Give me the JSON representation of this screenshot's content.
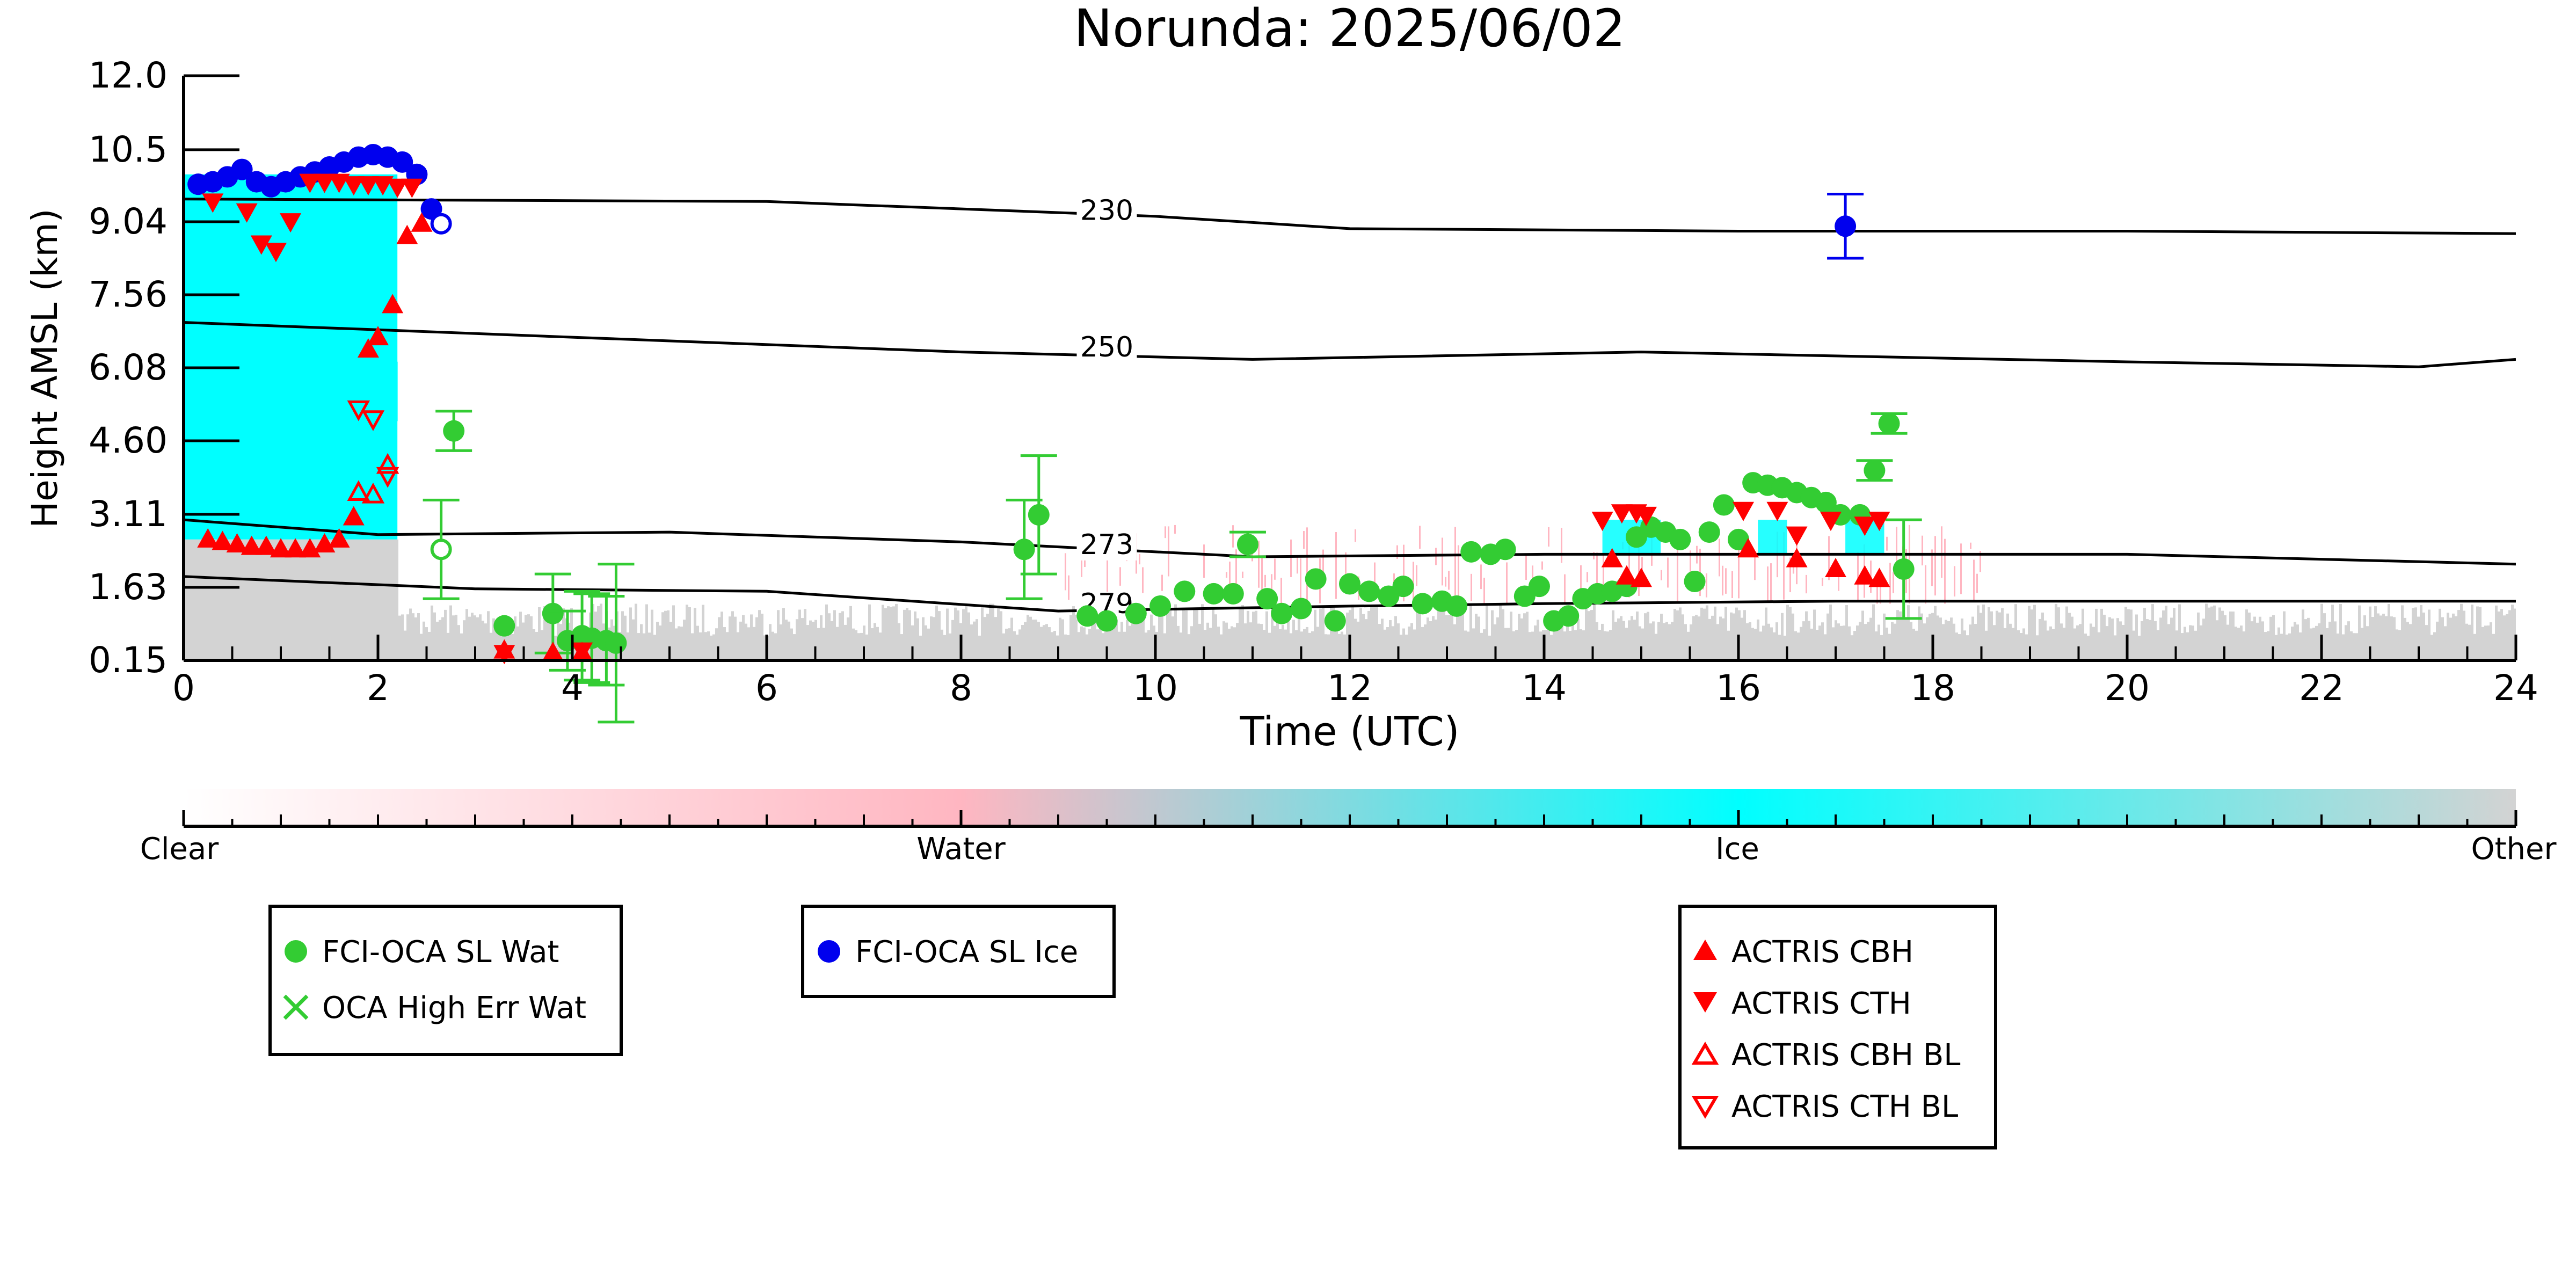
{
  "chart_data": {
    "type": "scatter",
    "title": "Norunda: 2025/06/02",
    "xlabel": "Time (UTC)",
    "ylabel": "Height AMSL (km)",
    "xlim": [
      0,
      24
    ],
    "ylim": [
      0.15,
      12.0
    ],
    "x_ticks": [
      0,
      2,
      4,
      6,
      8,
      10,
      12,
      14,
      16,
      18,
      20,
      22,
      24
    ],
    "y_ticks": [
      "0.15",
      "1.63",
      "3.11",
      "4.60",
      "6.08",
      "7.56",
      "9.04",
      "10.5",
      "12.0"
    ],
    "y_tick_values": [
      0.15,
      1.63,
      3.11,
      4.6,
      6.08,
      7.56,
      9.04,
      10.5,
      12.0
    ],
    "grid": false,
    "colorbar": {
      "labels": [
        "Clear",
        "Water",
        "Ice",
        "Other"
      ],
      "colors": [
        "#ffffff",
        "#ffb6c1",
        "#00ffff",
        "#d3d3d3"
      ]
    },
    "background_layers": [
      {
        "category": "Ice",
        "color": "#00ffff",
        "x_range": [
          0.0,
          2.2
        ],
        "y_range": [
          2.6,
          10.0
        ]
      },
      {
        "category": "Other",
        "color": "#d3d3d3",
        "x_range": [
          0.0,
          24.0
        ],
        "y_range": [
          0.15,
          1.3
        ]
      },
      {
        "category": "Water",
        "color": "#ffb6c1",
        "x_range": [
          9.0,
          18.5
        ],
        "y_range": [
          1.3,
          2.9
        ]
      }
    ],
    "isotherms": [
      {
        "label": "230",
        "label_at": [
          9.5,
          9.12
        ],
        "points": [
          [
            0,
            9.5
          ],
          [
            6,
            9.45
          ],
          [
            10,
            9.15
          ],
          [
            12,
            8.9
          ],
          [
            16,
            8.85
          ],
          [
            20,
            8.85
          ],
          [
            24,
            8.8
          ]
        ]
      },
      {
        "label": "250",
        "label_at": [
          9.5,
          6.35
        ],
        "points": [
          [
            0,
            7.0
          ],
          [
            4,
            6.7
          ],
          [
            8,
            6.4
          ],
          [
            11,
            6.25
          ],
          [
            15,
            6.4
          ],
          [
            20,
            6.2
          ],
          [
            23,
            6.1
          ],
          [
            24,
            6.25
          ]
        ]
      },
      {
        "label": "273",
        "label_at": [
          9.5,
          2.35
        ],
        "points": [
          [
            0,
            3.0
          ],
          [
            2,
            2.7
          ],
          [
            5,
            2.75
          ],
          [
            8,
            2.55
          ],
          [
            11,
            2.25
          ],
          [
            14,
            2.3
          ],
          [
            17,
            2.3
          ],
          [
            20,
            2.3
          ],
          [
            24,
            2.1
          ]
        ]
      },
      {
        "label": "279",
        "label_at": [
          9.5,
          1.15
        ],
        "points": [
          [
            0,
            1.85
          ],
          [
            3,
            1.6
          ],
          [
            6,
            1.55
          ],
          [
            9,
            1.15
          ],
          [
            12,
            1.25
          ],
          [
            14,
            1.3
          ],
          [
            17,
            1.35
          ],
          [
            24,
            1.35
          ]
        ]
      }
    ],
    "series": [
      {
        "name": "FCI-OCA SL Wat",
        "marker": "filled-circle",
        "color": "#33cc33",
        "points": [
          {
            "x": 2.78,
            "y": 4.8,
            "err": 0.4
          },
          {
            "x": 3.3,
            "y": 0.85
          },
          {
            "x": 3.8,
            "y": 1.1,
            "err": 0.8
          },
          {
            "x": 3.95,
            "y": 0.55,
            "err": 0.6
          },
          {
            "x": 4.1,
            "y": 0.65,
            "err": 0.9
          },
          {
            "x": 4.2,
            "y": 0.6,
            "err": 0.9
          },
          {
            "x": 4.35,
            "y": 0.55,
            "err": 0.9
          },
          {
            "x": 4.45,
            "y": 0.5,
            "err": 1.6
          },
          {
            "x": 8.65,
            "y": 2.4,
            "err": 1.0
          },
          {
            "x": 8.8,
            "y": 3.1,
            "err": 1.2
          },
          {
            "x": 9.3,
            "y": 1.05
          },
          {
            "x": 9.5,
            "y": 0.95
          },
          {
            "x": 9.8,
            "y": 1.1
          },
          {
            "x": 10.05,
            "y": 1.25
          },
          {
            "x": 10.3,
            "y": 1.55
          },
          {
            "x": 10.6,
            "y": 1.5
          },
          {
            "x": 10.8,
            "y": 1.5
          },
          {
            "x": 10.95,
            "y": 2.5,
            "err": 0.25
          },
          {
            "x": 11.15,
            "y": 1.4
          },
          {
            "x": 11.3,
            "y": 1.1
          },
          {
            "x": 11.5,
            "y": 1.2
          },
          {
            "x": 11.65,
            "y": 1.8
          },
          {
            "x": 11.85,
            "y": 0.95
          },
          {
            "x": 12.0,
            "y": 1.7
          },
          {
            "x": 12.2,
            "y": 1.55
          },
          {
            "x": 12.4,
            "y": 1.45
          },
          {
            "x": 12.55,
            "y": 1.65
          },
          {
            "x": 12.75,
            "y": 1.3
          },
          {
            "x": 12.95,
            "y": 1.35
          },
          {
            "x": 13.1,
            "y": 1.25
          },
          {
            "x": 13.25,
            "y": 2.35
          },
          {
            "x": 13.45,
            "y": 2.3
          },
          {
            "x": 13.6,
            "y": 2.4
          },
          {
            "x": 13.8,
            "y": 1.45
          },
          {
            "x": 13.95,
            "y": 1.65
          },
          {
            "x": 14.1,
            "y": 0.95
          },
          {
            "x": 14.25,
            "y": 1.05
          },
          {
            "x": 14.4,
            "y": 1.4
          },
          {
            "x": 14.55,
            "y": 1.5
          },
          {
            "x": 14.7,
            "y": 1.55
          },
          {
            "x": 14.85,
            "y": 1.65
          },
          {
            "x": 14.95,
            "y": 2.65
          },
          {
            "x": 15.1,
            "y": 2.85
          },
          {
            "x": 15.25,
            "y": 2.75
          },
          {
            "x": 15.4,
            "y": 2.6
          },
          {
            "x": 15.55,
            "y": 1.75
          },
          {
            "x": 15.7,
            "y": 2.75
          },
          {
            "x": 15.85,
            "y": 3.3
          },
          {
            "x": 16.0,
            "y": 2.6
          },
          {
            "x": 16.15,
            "y": 3.75
          },
          {
            "x": 16.3,
            "y": 3.7
          },
          {
            "x": 16.45,
            "y": 3.65
          },
          {
            "x": 16.6,
            "y": 3.55
          },
          {
            "x": 16.75,
            "y": 3.45
          },
          {
            "x": 16.9,
            "y": 3.35
          },
          {
            "x": 17.05,
            "y": 3.1
          },
          {
            "x": 17.25,
            "y": 3.1
          },
          {
            "x": 17.4,
            "y": 4.0,
            "err": 0.2
          },
          {
            "x": 17.55,
            "y": 4.95,
            "err": 0.2
          },
          {
            "x": 17.7,
            "y": 2.0,
            "err": 1.0
          }
        ]
      },
      {
        "name": "OCA High Err Wat",
        "marker": "x",
        "color": "#33cc33",
        "points": []
      },
      {
        "name": "FCI-OCA SL Ice",
        "marker": "filled-circle",
        "color": "#0000ee",
        "points": [
          {
            "x": 0.15,
            "y": 9.8
          },
          {
            "x": 0.3,
            "y": 9.85
          },
          {
            "x": 0.45,
            "y": 9.95
          },
          {
            "x": 0.6,
            "y": 10.1
          },
          {
            "x": 0.75,
            "y": 9.85
          },
          {
            "x": 0.9,
            "y": 9.75
          },
          {
            "x": 1.05,
            "y": 9.85
          },
          {
            "x": 1.2,
            "y": 9.95
          },
          {
            "x": 1.35,
            "y": 10.05
          },
          {
            "x": 1.5,
            "y": 10.15
          },
          {
            "x": 1.65,
            "y": 10.25
          },
          {
            "x": 1.8,
            "y": 10.35
          },
          {
            "x": 1.95,
            "y": 10.4
          },
          {
            "x": 2.1,
            "y": 10.35
          },
          {
            "x": 2.25,
            "y": 10.25
          },
          {
            "x": 2.4,
            "y": 10.0
          },
          {
            "x": 2.55,
            "y": 9.3
          },
          {
            "x": 17.1,
            "y": 8.95,
            "err": 0.65
          }
        ]
      },
      {
        "name": "FCI-OCA SL Ice (hollow)",
        "marker": "open-circle",
        "color": "#0000ee",
        "points": [
          {
            "x": 2.65,
            "y": 9.0
          }
        ]
      },
      {
        "name": "FCI-OCA SL Wat (hollow)",
        "marker": "open-circle",
        "color": "#33cc33",
        "points": [
          {
            "x": 2.65,
            "y": 2.4,
            "err": 1.0
          }
        ]
      },
      {
        "name": "ACTRIS CBH",
        "marker": "triangle-up",
        "color": "#ff0000",
        "points": [
          {
            "x": 0.25,
            "y": 2.6
          },
          {
            "x": 0.4,
            "y": 2.55
          },
          {
            "x": 0.55,
            "y": 2.5
          },
          {
            "x": 0.7,
            "y": 2.45
          },
          {
            "x": 0.85,
            "y": 2.45
          },
          {
            "x": 1.0,
            "y": 2.4
          },
          {
            "x": 1.15,
            "y": 2.4
          },
          {
            "x": 1.3,
            "y": 2.4
          },
          {
            "x": 1.45,
            "y": 2.5
          },
          {
            "x": 1.6,
            "y": 2.6
          },
          {
            "x": 1.75,
            "y": 3.05
          },
          {
            "x": 1.9,
            "y": 6.45
          },
          {
            "x": 2.0,
            "y": 6.7
          },
          {
            "x": 2.15,
            "y": 7.35
          },
          {
            "x": 2.3,
            "y": 8.75
          },
          {
            "x": 2.45,
            "y": 9.0
          },
          {
            "x": 3.3,
            "y": 0.35
          },
          {
            "x": 3.8,
            "y": 0.3
          },
          {
            "x": 4.1,
            "y": 0.3
          },
          {
            "x": 14.7,
            "y": 2.2
          },
          {
            "x": 14.85,
            "y": 1.85
          },
          {
            "x": 15.0,
            "y": 1.8
          },
          {
            "x": 16.1,
            "y": 2.4
          },
          {
            "x": 16.6,
            "y": 2.2
          },
          {
            "x": 17.0,
            "y": 2.0
          },
          {
            "x": 17.3,
            "y": 1.85
          },
          {
            "x": 17.45,
            "y": 1.8
          }
        ]
      },
      {
        "name": "ACTRIS CTH",
        "marker": "triangle-down",
        "color": "#ff0000",
        "points": [
          {
            "x": 0.3,
            "y": 9.45
          },
          {
            "x": 0.65,
            "y": 9.25
          },
          {
            "x": 0.8,
            "y": 8.6
          },
          {
            "x": 0.95,
            "y": 8.45
          },
          {
            "x": 1.1,
            "y": 9.05
          },
          {
            "x": 1.3,
            "y": 9.85
          },
          {
            "x": 1.45,
            "y": 9.85
          },
          {
            "x": 1.6,
            "y": 9.85
          },
          {
            "x": 1.75,
            "y": 9.8
          },
          {
            "x": 1.9,
            "y": 9.8
          },
          {
            "x": 2.05,
            "y": 9.8
          },
          {
            "x": 2.2,
            "y": 9.75
          },
          {
            "x": 2.35,
            "y": 9.75
          },
          {
            "x": 3.3,
            "y": 0.3
          },
          {
            "x": 4.1,
            "y": 0.35
          },
          {
            "x": 14.6,
            "y": 3.0
          },
          {
            "x": 14.8,
            "y": 3.15
          },
          {
            "x": 14.95,
            "y": 3.15
          },
          {
            "x": 15.05,
            "y": 3.1
          },
          {
            "x": 16.05,
            "y": 3.2
          },
          {
            "x": 16.4,
            "y": 3.2
          },
          {
            "x": 16.6,
            "y": 2.7
          },
          {
            "x": 16.95,
            "y": 3.0
          },
          {
            "x": 17.3,
            "y": 2.9
          },
          {
            "x": 17.45,
            "y": 3.0
          }
        ]
      },
      {
        "name": "ACTRIS CBH BL",
        "marker": "open-triangle-up",
        "color": "#ff0000",
        "points": [
          {
            "x": 1.8,
            "y": 3.55
          },
          {
            "x": 1.95,
            "y": 3.5
          },
          {
            "x": 2.1,
            "y": 4.1
          }
        ]
      },
      {
        "name": "ACTRIS CTH BL",
        "marker": "open-triangle-down",
        "color": "#ff0000",
        "points": [
          {
            "x": 1.8,
            "y": 5.25
          },
          {
            "x": 1.95,
            "y": 5.05
          },
          {
            "x": 2.1,
            "y": 3.9
          }
        ]
      }
    ],
    "legends": [
      {
        "entries": [
          {
            "marker": "filled-circle",
            "color": "#33cc33",
            "label": "FCI-OCA SL Wat"
          },
          {
            "marker": "x",
            "color": "#33cc33",
            "label": "OCA High Err Wat"
          }
        ]
      },
      {
        "entries": [
          {
            "marker": "filled-circle",
            "color": "#0000ee",
            "label": "FCI-OCA SL Ice"
          }
        ]
      },
      {
        "entries": [
          {
            "marker": "triangle-up",
            "color": "#ff0000",
            "label": "ACTRIS CBH"
          },
          {
            "marker": "triangle-down",
            "color": "#ff0000",
            "label": "ACTRIS CTH"
          },
          {
            "marker": "open-triangle-up",
            "color": "#ff0000",
            "label": "ACTRIS CBH BL"
          },
          {
            "marker": "open-triangle-down",
            "color": "#ff0000",
            "label": "ACTRIS CTH BL"
          }
        ]
      }
    ]
  }
}
